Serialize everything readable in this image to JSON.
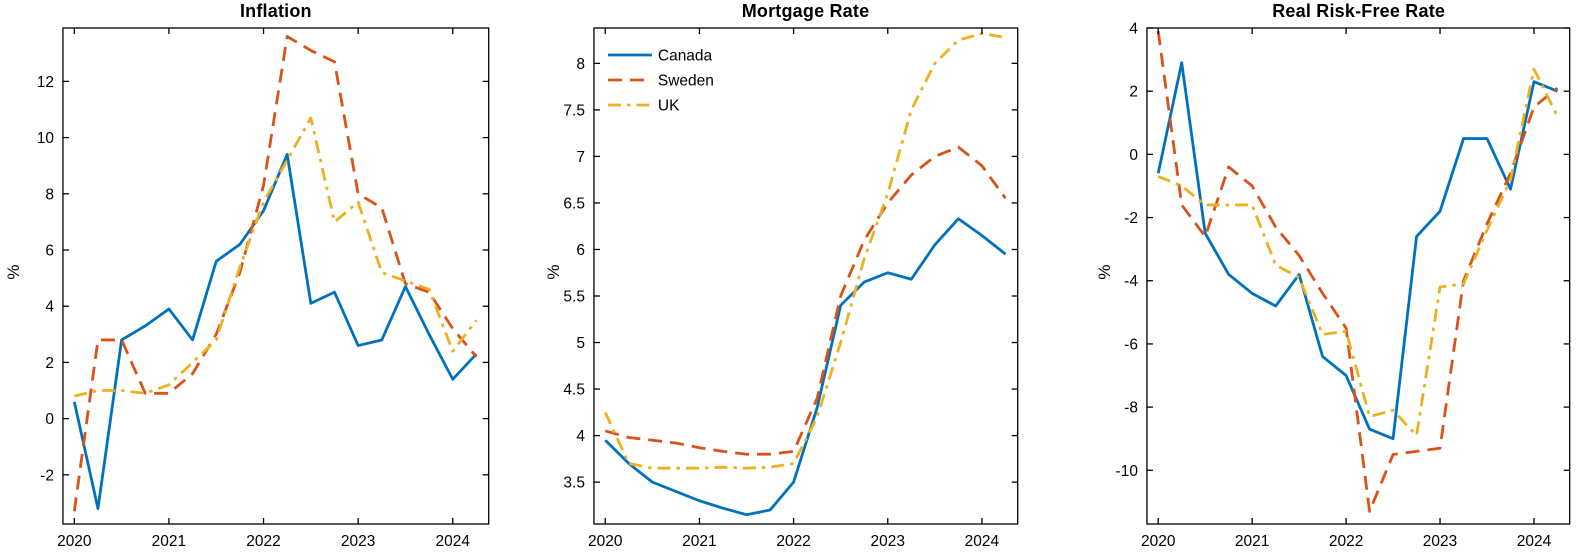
{
  "figure": {
    "background": "#ffffff"
  },
  "colors": {
    "canada": "#0072BD",
    "sweden": "#D95319",
    "uk": "#EDB120",
    "axis": "#000000"
  },
  "chart_data": [
    {
      "type": "line",
      "title": "Inflation",
      "ylabel": "%",
      "x": [
        2020.0,
        2020.25,
        2020.5,
        2020.75,
        2021.0,
        2021.25,
        2021.5,
        2021.75,
        2022.0,
        2022.25,
        2022.5,
        2022.75,
        2023.0,
        2023.25,
        2023.5,
        2023.75,
        2024.0,
        2024.25
      ],
      "xticks": [
        2020,
        2021,
        2022,
        2023,
        2024
      ],
      "xlim": [
        2019.88,
        2024.38
      ],
      "yticks": [
        -2,
        0,
        2,
        4,
        6,
        8,
        10,
        12
      ],
      "ylim": [
        -3.75,
        13.9
      ],
      "legend": {
        "show": false
      },
      "series": [
        {
          "name": "Canada",
          "color": "#0072BD",
          "style": "solid",
          "values": [
            0.6,
            -3.2,
            2.8,
            3.3,
            3.9,
            2.8,
            5.6,
            6.2,
            7.4,
            9.4,
            4.1,
            4.5,
            2.6,
            2.8,
            4.7,
            3.0,
            1.4,
            2.3
          ]
        },
        {
          "name": "Sweden",
          "color": "#D95319",
          "style": "dashed",
          "values": [
            -3.3,
            2.8,
            2.8,
            0.9,
            0.9,
            1.6,
            3.0,
            5.2,
            8.3,
            13.6,
            13.1,
            12.7,
            8.0,
            7.5,
            4.8,
            4.5,
            3.2,
            2.2
          ]
        },
        {
          "name": "UK",
          "color": "#EDB120",
          "style": "dashdot",
          "values": [
            0.8,
            1.0,
            1.0,
            0.9,
            1.2,
            2.0,
            2.8,
            5.4,
            7.7,
            9.2,
            10.7,
            7.0,
            7.7,
            5.2,
            4.9,
            4.6,
            2.4,
            3.5
          ]
        }
      ]
    },
    {
      "type": "line",
      "title": "Mortgage Rate",
      "ylabel": "%",
      "x": [
        2020.0,
        2020.25,
        2020.5,
        2020.75,
        2021.0,
        2021.25,
        2021.5,
        2021.75,
        2022.0,
        2022.25,
        2022.5,
        2022.75,
        2023.0,
        2023.25,
        2023.5,
        2023.75,
        2024.0,
        2024.25
      ],
      "xticks": [
        2020,
        2021,
        2022,
        2023,
        2024
      ],
      "xlim": [
        2019.88,
        2024.38
      ],
      "yticks": [
        3.5,
        4,
        4.5,
        5,
        5.5,
        6,
        6.5,
        7,
        7.5,
        8
      ],
      "ylim": [
        3.05,
        8.38
      ],
      "legend": {
        "show": true,
        "position": "top-left",
        "entries": [
          "Canada",
          "Sweden",
          "UK"
        ]
      },
      "series": [
        {
          "name": "Canada",
          "color": "#0072BD",
          "style": "solid",
          "values": [
            3.95,
            3.7,
            3.5,
            3.4,
            3.3,
            3.22,
            3.15,
            3.2,
            3.5,
            4.3,
            5.4,
            5.65,
            5.75,
            5.68,
            6.05,
            6.33,
            6.15,
            5.95
          ]
        },
        {
          "name": "Sweden",
          "color": "#D95319",
          "style": "dashed",
          "values": [
            4.05,
            3.98,
            3.95,
            3.92,
            3.87,
            3.83,
            3.8,
            3.8,
            3.83,
            4.4,
            5.5,
            6.1,
            6.5,
            6.8,
            7.0,
            7.1,
            6.9,
            6.55
          ]
        },
        {
          "name": "UK",
          "color": "#EDB120",
          "style": "dashdot",
          "values": [
            4.25,
            3.7,
            3.65,
            3.65,
            3.65,
            3.66,
            3.65,
            3.66,
            3.7,
            4.2,
            5.0,
            5.9,
            6.6,
            7.5,
            8.0,
            8.25,
            8.32,
            8.28
          ]
        }
      ]
    },
    {
      "type": "line",
      "title": "Real Risk-Free Rate",
      "ylabel": "%",
      "x": [
        2020.0,
        2020.25,
        2020.5,
        2020.75,
        2021.0,
        2021.25,
        2021.5,
        2021.75,
        2022.0,
        2022.25,
        2022.5,
        2022.75,
        2023.0,
        2023.25,
        2023.5,
        2023.75,
        2024.0,
        2024.25
      ],
      "xticks": [
        2020,
        2021,
        2022,
        2023,
        2024
      ],
      "xlim": [
        2019.88,
        2024.38
      ],
      "yticks": [
        -10,
        -8,
        -6,
        -4,
        -2,
        0,
        2,
        4
      ],
      "ylim": [
        -11.7,
        4
      ],
      "legend": {
        "show": false
      },
      "series": [
        {
          "name": "Canada",
          "color": "#0072BD",
          "style": "solid",
          "values": [
            -0.6,
            2.9,
            -2.5,
            -3.8,
            -4.4,
            -4.8,
            -3.8,
            -6.4,
            -7.0,
            -8.7,
            -9.0,
            -2.6,
            -1.8,
            0.5,
            0.5,
            -1.1,
            2.3,
            2.0
          ]
        },
        {
          "name": "Sweden",
          "color": "#D95319",
          "style": "dashed",
          "values": [
            3.9,
            -1.6,
            -2.6,
            -0.4,
            -1.0,
            -2.3,
            -3.2,
            -4.4,
            -5.5,
            -11.3,
            -9.5,
            -9.4,
            -9.3,
            -4.0,
            -2.2,
            -0.6,
            1.5,
            2.1
          ]
        },
        {
          "name": "UK",
          "color": "#EDB120",
          "style": "dashdot",
          "values": [
            -0.7,
            -1.0,
            -1.6,
            -1.6,
            -1.6,
            -3.5,
            -3.9,
            -5.7,
            -5.6,
            -8.3,
            -8.1,
            -8.9,
            -4.2,
            -4.1,
            -2.4,
            -0.8,
            2.7,
            1.2
          ]
        }
      ]
    }
  ]
}
